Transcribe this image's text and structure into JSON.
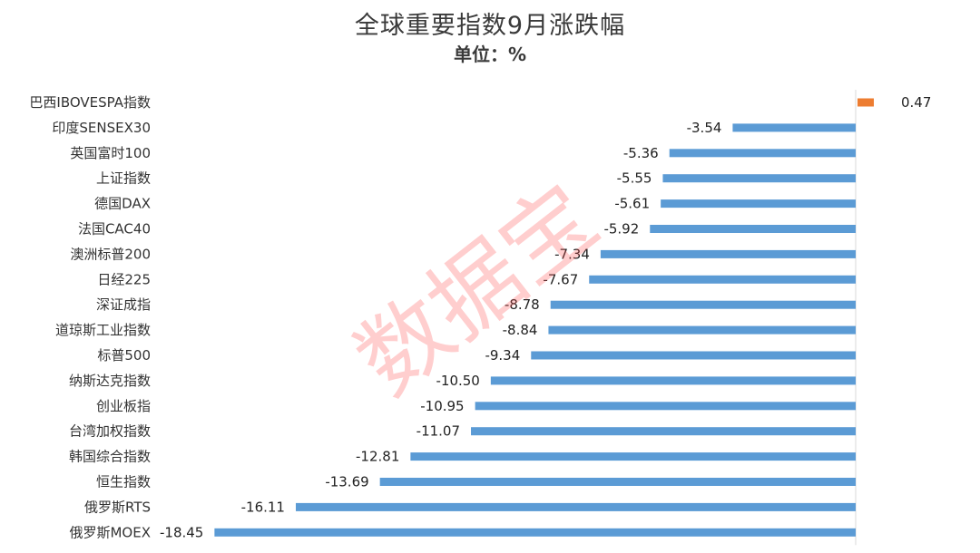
{
  "chart_data": {
    "type": "bar",
    "orientation": "horizontal",
    "title": "全球重要指数9月涨跌幅",
    "subtitle": "单位：%",
    "categories": [
      "巴西IBOVESPA指数",
      "印度SENSEX30",
      "英国富时100",
      "上证指数",
      "德国DAX",
      "法国CAC40",
      "澳洲标普200",
      "日经225",
      "深证成指",
      "道琼斯工业指数",
      "标普500",
      "纳斯达克指数",
      "创业板指",
      "台湾加权指数",
      "韩国综合指数",
      "恒生指数",
      "俄罗斯RTS",
      "俄罗斯MOEX"
    ],
    "values": [
      0.47,
      -3.54,
      -5.36,
      -5.55,
      -5.61,
      -5.92,
      -7.34,
      -7.67,
      -8.78,
      -8.84,
      -9.34,
      -10.5,
      -10.95,
      -11.07,
      -12.81,
      -13.69,
      -16.11,
      -18.45
    ],
    "value_labels": [
      "0.47",
      "-3.54",
      "-5.36",
      "-5.55",
      "-5.61",
      "-5.92",
      "-7.34",
      "-7.67",
      "-8.78",
      "-8.84",
      "-9.34",
      "-10.50",
      "-10.95",
      "-11.07",
      "-12.81",
      "-13.69",
      "-16.11",
      "-18.45"
    ],
    "colors": {
      "positive": "#ED7D31",
      "negative": "#5B9BD5",
      "axis": "#d9d9d9"
    },
    "xlim": [
      -18.45,
      0.47
    ],
    "grid": false,
    "legend": "none"
  },
  "watermark": "数据宝"
}
